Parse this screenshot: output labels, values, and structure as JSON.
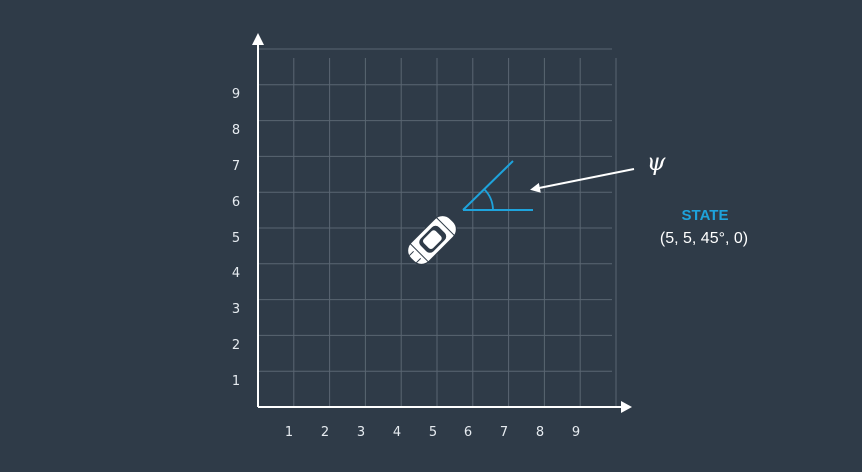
{
  "diagram": {
    "x_ticks": [
      "1",
      "2",
      "3",
      "4",
      "5",
      "6",
      "7",
      "8",
      "9"
    ],
    "y_ticks": [
      "1",
      "2",
      "3",
      "4",
      "5",
      "6",
      "7",
      "8",
      "9"
    ],
    "heading_symbol": "ψ",
    "state_label": "STATE",
    "state_value": "(5, 5, 45°, 0)",
    "colors": {
      "background": "#2f3b48",
      "grid": "#5a6672",
      "axis": "#ffffff",
      "accent": "#1ea3dc",
      "car": "#ffffff"
    },
    "icons": [
      "car-icon",
      "arrow-icon"
    ]
  }
}
